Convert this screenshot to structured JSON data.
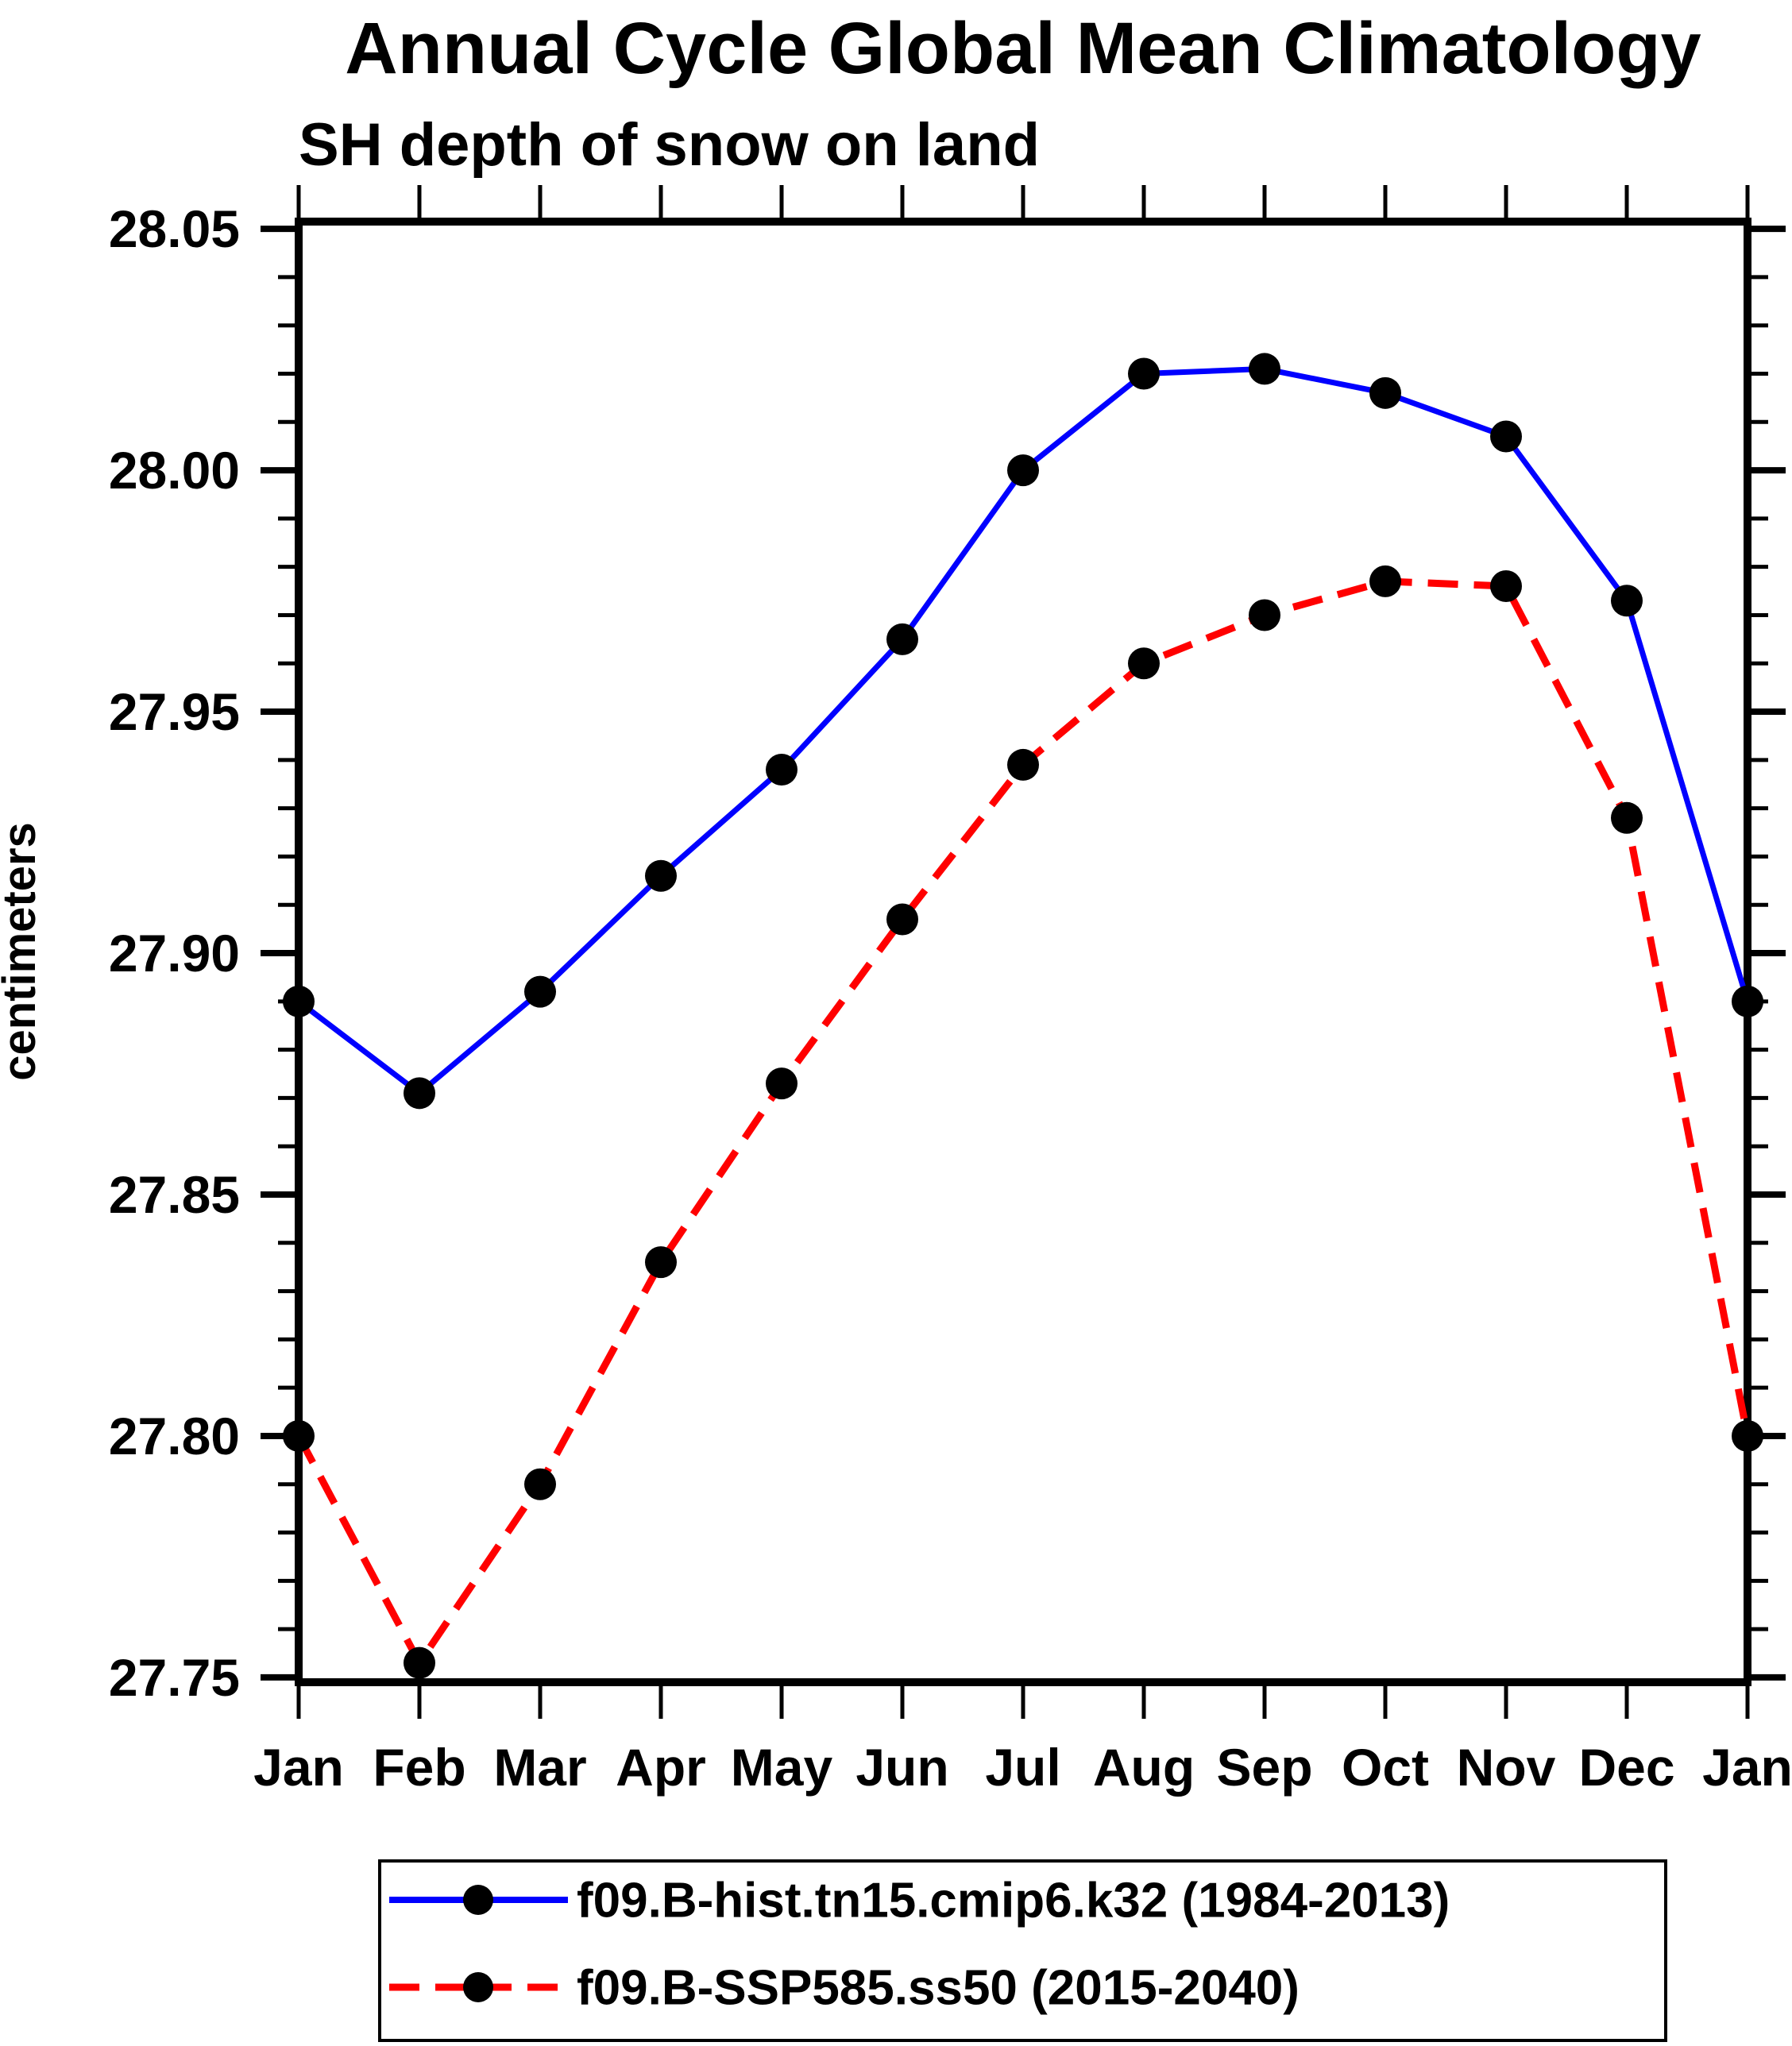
{
  "window": {
    "background": "#ffffff"
  },
  "chart_data": {
    "type": "line",
    "title": "Annual Cycle Global Mean Climatology",
    "subtitle": "SH depth of snow on land",
    "xlabel": "",
    "ylabel": "centimeters",
    "categories": [
      "Jan",
      "Feb",
      "Mar",
      "Apr",
      "May",
      "Jun",
      "Jul",
      "Aug",
      "Sep",
      "Oct",
      "Nov",
      "Dec",
      "Jan"
    ],
    "ylim": [
      27.749,
      28.0515
    ],
    "y_ticks": [
      27.75,
      27.8,
      27.85,
      27.9,
      27.95,
      28.0,
      28.05
    ],
    "y_tick_labels": [
      "27.75",
      "27.80",
      "27.85",
      "27.90",
      "27.95",
      "28.00",
      "28.05"
    ],
    "y_minor_tick_step": 0.01,
    "grid": false,
    "legend_position": "bottom",
    "marker_color": "#000000",
    "axis_color": "#000000",
    "series": [
      {
        "name": "f09.B-hist.tn15.cmip6.k32 (1984-2013)",
        "color": "#0000ff",
        "line_style": "solid",
        "marker": "circle",
        "values": [
          27.89,
          27.871,
          27.892,
          27.916,
          27.938,
          27.965,
          28.0,
          28.02,
          28.021,
          28.016,
          28.007,
          27.973,
          27.89
        ]
      },
      {
        "name": "f09.B-SSP585.ss50 (2015-2040)",
        "color": "#ff0000",
        "line_style": "dashed",
        "marker": "circle",
        "values": [
          27.8,
          27.753,
          27.79,
          27.836,
          27.873,
          27.907,
          27.939,
          27.96,
          27.97,
          27.977,
          27.976,
          27.928,
          27.8
        ]
      }
    ]
  }
}
